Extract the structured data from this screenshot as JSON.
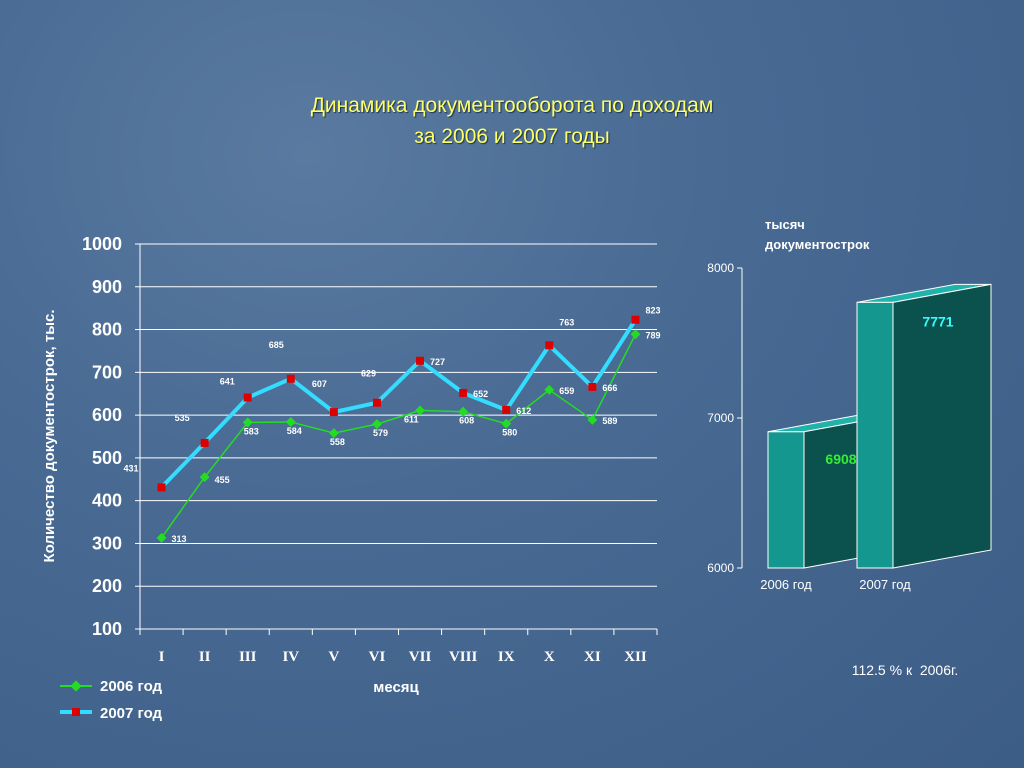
{
  "slide": {
    "title_line1": "Динамика документооборота по доходам",
    "title_line2": "за 2006 и 2007 годы",
    "note": "112.5 % к  2006г."
  },
  "chart_data": [
    {
      "type": "line",
      "xlabel": "месяц",
      "ylabel": "Количество документострок, тыс.",
      "ylim": [
        100,
        1000
      ],
      "yticks": [
        100,
        200,
        300,
        400,
        500,
        600,
        700,
        800,
        900,
        1000
      ],
      "categories": [
        "I",
        "II",
        "III",
        "IV",
        "V",
        "VI",
        "VII",
        "VIII",
        "IX",
        "X",
        "XI",
        "XII"
      ],
      "grid": true,
      "legend_position": "bottom-left",
      "series": [
        {
          "name": "2006 год",
          "color": "#22dd22",
          "marker": "diamond",
          "values": [
            313,
            455,
            583,
            584,
            558,
            579,
            611,
            608,
            580,
            659,
            589,
            789
          ]
        },
        {
          "name": "2007 год",
          "color": "#33ddff",
          "marker": "square",
          "marker_color": "#dd0000",
          "values": [
            431,
            535,
            641,
            685,
            607,
            629,
            727,
            652,
            612,
            763,
            666,
            823
          ]
        }
      ]
    },
    {
      "type": "bar",
      "unit_label_line1": "тысяч",
      "unit_label_line2": "документострок",
      "categories": [
        "2006 год",
        "2007 год"
      ],
      "values": [
        6908,
        7771
      ],
      "ylim": [
        6000,
        8000
      ],
      "yticks": [
        6000,
        7000,
        8000
      ],
      "colors": {
        "front": "#13978f",
        "side": "#0b524e",
        "value_2006": "#33ee33",
        "value_2007": "#33ffff"
      }
    }
  ]
}
